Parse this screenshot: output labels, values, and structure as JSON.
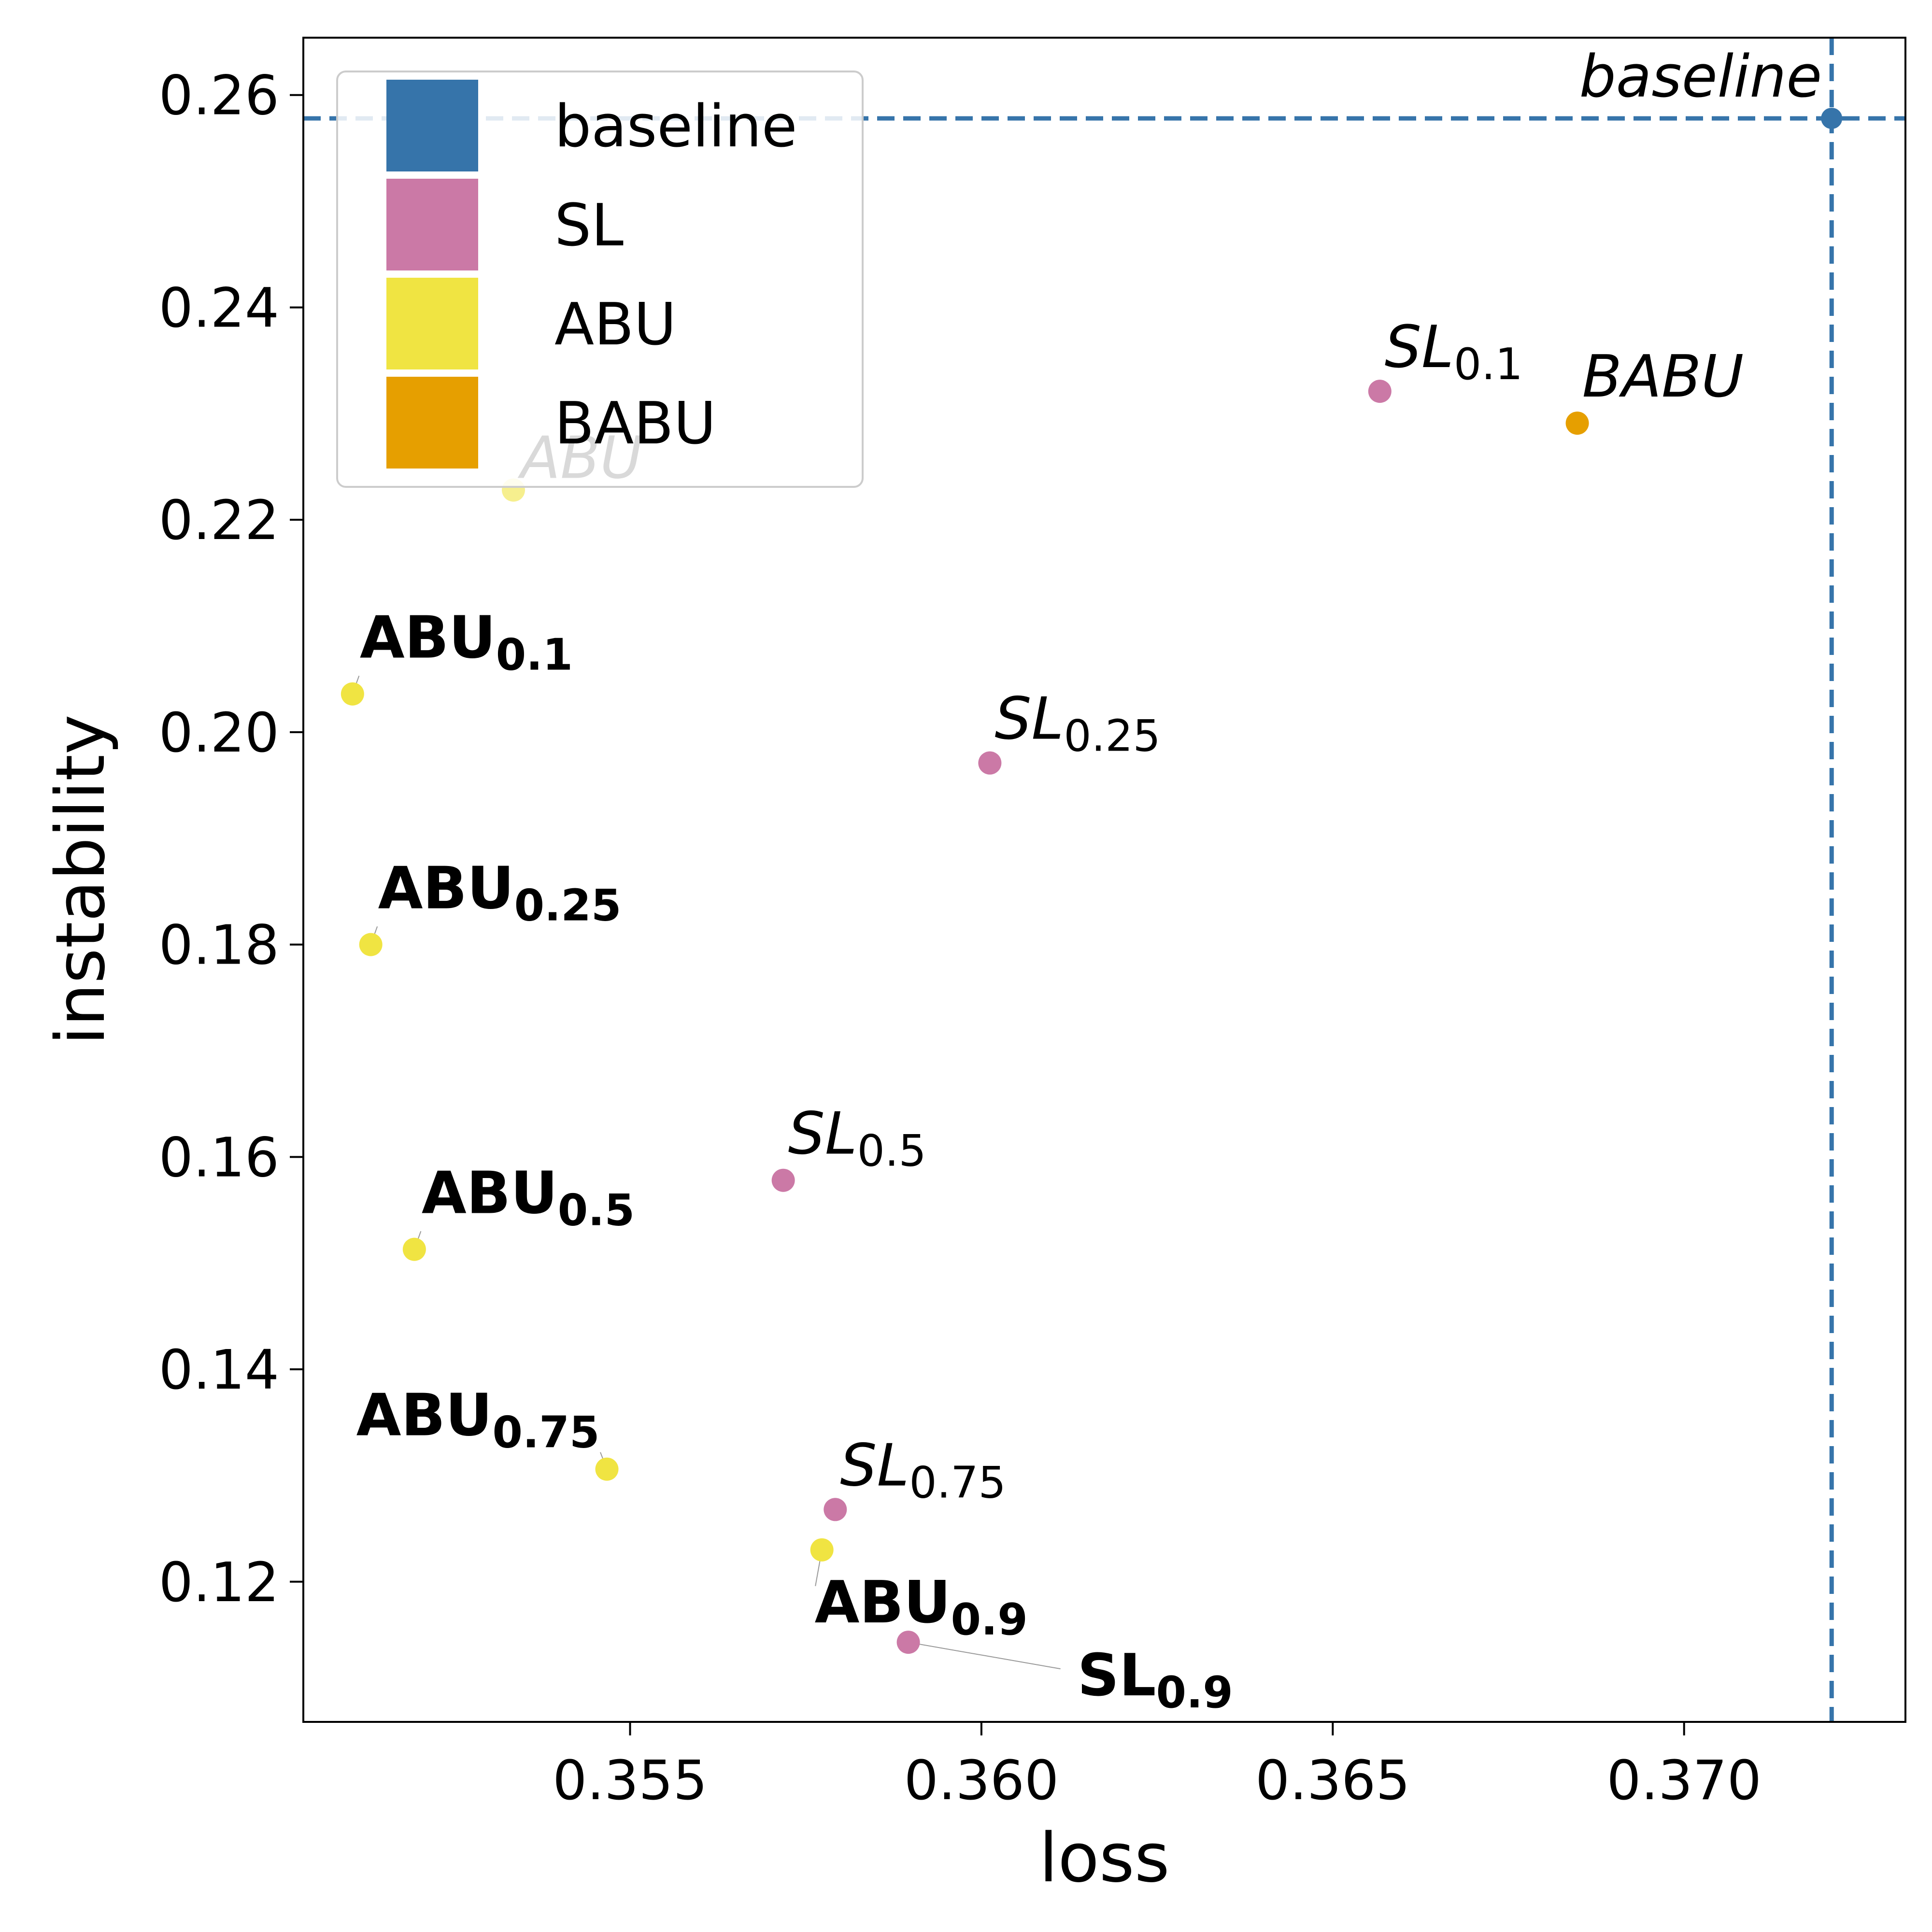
{
  "chart_data": {
    "type": "scatter",
    "xlabel": "loss",
    "ylabel": "instability",
    "xlim": [
      0.35035,
      0.37315
    ],
    "ylim": [
      0.1068,
      0.2654
    ],
    "xticks": [
      0.355,
      0.36,
      0.365,
      0.37
    ],
    "xtick_labels": [
      "0.355",
      "0.360",
      "0.365",
      "0.370"
    ],
    "yticks": [
      0.12,
      0.14,
      0.16,
      0.18,
      0.2,
      0.22,
      0.24,
      0.26
    ],
    "ytick_labels": [
      "0.12",
      "0.14",
      "0.16",
      "0.18",
      "0.20",
      "0.22",
      "0.24",
      "0.26"
    ],
    "grid": false,
    "legend_position": "top-left",
    "legend": [
      {
        "label": "baseline",
        "color": "#3674aa"
      },
      {
        "label": "SL",
        "color": "#cb79a6"
      },
      {
        "label": "ABU",
        "color": "#f0e442"
      },
      {
        "label": "BABU",
        "color": "#e69f00"
      }
    ],
    "reference_lines": {
      "x": 0.3721,
      "y": 0.2578,
      "label": "baseline",
      "color": "#3674aa",
      "style": "dashed"
    },
    "points": [
      {
        "series": "baseline",
        "x": 0.3721,
        "y": 0.2578,
        "label": "baseline",
        "sub": "",
        "style": "italic",
        "color": "#3674aa"
      },
      {
        "series": "SL",
        "x": 0.36567,
        "y": 0.2321,
        "label": "SL",
        "sub": "0.1",
        "style": "italic",
        "color": "#cb79a6"
      },
      {
        "series": "BABU",
        "x": 0.36848,
        "y": 0.2291,
        "label": "BABU",
        "sub": "",
        "style": "italic",
        "color": "#e69f00"
      },
      {
        "series": "ABU",
        "x": 0.35334,
        "y": 0.2228,
        "label": "ABU",
        "sub": "",
        "style": "faded",
        "color": "#f0e442"
      },
      {
        "series": "ABU",
        "x": 0.35105,
        "y": 0.2036,
        "label": "ABU",
        "sub": "0.1",
        "style": "bold",
        "color": "#f0e442"
      },
      {
        "series": "SL",
        "x": 0.36012,
        "y": 0.1971,
        "label": "SL",
        "sub": "0.25",
        "style": "italic",
        "color": "#cb79a6"
      },
      {
        "series": "ABU",
        "x": 0.35131,
        "y": 0.18,
        "label": "ABU",
        "sub": "0.25",
        "style": "bold",
        "color": "#f0e442"
      },
      {
        "series": "SL",
        "x": 0.35718,
        "y": 0.1578,
        "label": "SL",
        "sub": "0.5",
        "style": "italic",
        "color": "#cb79a6"
      },
      {
        "series": "ABU",
        "x": 0.35193,
        "y": 0.1513,
        "label": "ABU",
        "sub": "0.5",
        "style": "bold",
        "color": "#f0e442"
      },
      {
        "series": "ABU",
        "x": 0.35467,
        "y": 0.1306,
        "label": "ABU",
        "sub": "0.75",
        "style": "bold",
        "color": "#f0e442"
      },
      {
        "series": "SL",
        "x": 0.35792,
        "y": 0.1268,
        "label": "SL",
        "sub": "0.75",
        "style": "italic",
        "color": "#cb79a6"
      },
      {
        "series": "ABU",
        "x": 0.35773,
        "y": 0.123,
        "label": "ABU",
        "sub": "0.9",
        "style": "bold",
        "color": "#f0e442"
      },
      {
        "series": "SL",
        "x": 0.35896,
        "y": 0.1143,
        "label": "SL",
        "sub": "0.9",
        "style": "bold",
        "color": "#cb79a6"
      }
    ]
  }
}
